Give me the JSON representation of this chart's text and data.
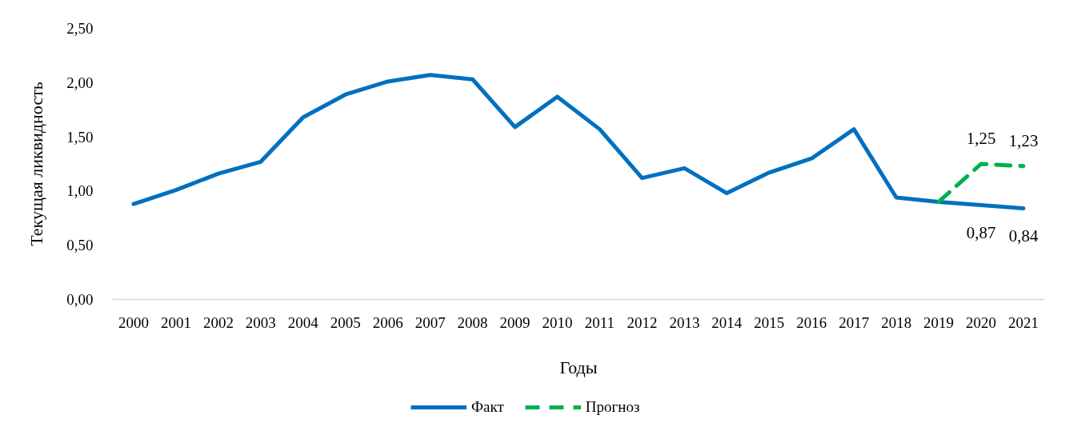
{
  "chart_data": {
    "type": "line",
    "xlabel": "Годы",
    "ylabel": "Текущая ликвидность",
    "categories": [
      "2000",
      "2001",
      "2002",
      "2003",
      "2004",
      "2005",
      "2006",
      "2007",
      "2008",
      "2009",
      "2010",
      "2011",
      "2012",
      "2013",
      "2014",
      "2015",
      "2016",
      "2017",
      "2018",
      "2019",
      "2020",
      "2021"
    ],
    "series": [
      {
        "name": "Факт",
        "color": "#0070c0",
        "line_style": "solid",
        "values": [
          0.88,
          1.01,
          1.16,
          1.27,
          1.68,
          1.89,
          2.01,
          2.07,
          2.03,
          1.59,
          1.87,
          1.57,
          1.12,
          1.21,
          0.98,
          1.17,
          1.3,
          1.57,
          0.94,
          0.9,
          0.87,
          0.84
        ],
        "value_labels": [
          null,
          null,
          null,
          null,
          null,
          null,
          null,
          null,
          null,
          null,
          null,
          null,
          null,
          null,
          null,
          null,
          null,
          null,
          null,
          null,
          "0,87",
          "0,84"
        ]
      },
      {
        "name": "Прогноз",
        "color": "#00b050",
        "line_style": "dashed",
        "values": [
          null,
          null,
          null,
          null,
          null,
          null,
          null,
          null,
          null,
          null,
          null,
          null,
          null,
          null,
          null,
          null,
          null,
          null,
          null,
          0.9,
          1.25,
          1.23
        ],
        "value_labels": [
          null,
          null,
          null,
          null,
          null,
          null,
          null,
          null,
          null,
          null,
          null,
          null,
          null,
          null,
          null,
          null,
          null,
          null,
          null,
          null,
          "1,25",
          "1,23"
        ]
      }
    ],
    "ylim": [
      0,
      2.5
    ],
    "yticks": [
      {
        "value": 0,
        "label": "0,00"
      },
      {
        "value": 0.5,
        "label": "0,50"
      },
      {
        "value": 1,
        "label": "1,00"
      },
      {
        "value": 1.5,
        "label": "1,50"
      },
      {
        "value": 2,
        "label": "2,00"
      },
      {
        "value": 2.5,
        "label": "2,50"
      }
    ],
    "grid": false,
    "legend": "bottom"
  }
}
